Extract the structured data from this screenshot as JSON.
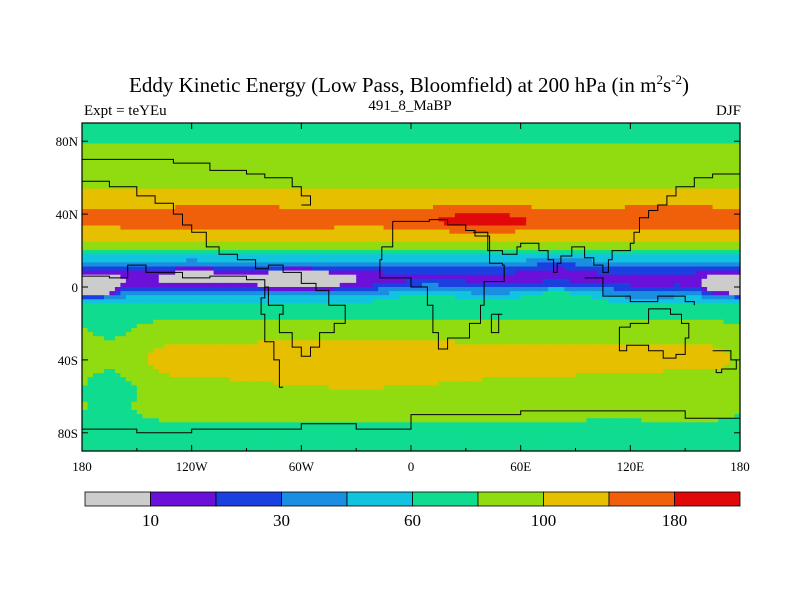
{
  "chart_data": {
    "type": "heatmap",
    "title": "Eddy Kinetic Energy (Low Pass, Bloomfield) at 200 hPa (in m",
    "title_units": {
      "sup1": "2",
      "mid": "s",
      "sup2": "-2",
      "close": ")"
    },
    "left_label": "Expt = teYEu",
    "center_label": "491_8_MaBP",
    "right_label": "DJF",
    "x_axis": {
      "range": [
        -180,
        180
      ],
      "ticks": [
        -180,
        -120,
        -60,
        0,
        60,
        120,
        180
      ],
      "tick_labels": [
        "180",
        "120W",
        "60W",
        "0",
        "60E",
        "120E",
        "180"
      ]
    },
    "y_axis": {
      "range": [
        -90,
        90
      ],
      "ticks": [
        80,
        40,
        0,
        -40,
        -80
      ],
      "tick_labels": [
        "80N",
        "40N",
        "0",
        "40S",
        "80S"
      ]
    },
    "levels": [
      0,
      10,
      20,
      30,
      45,
      60,
      80,
      100,
      140,
      180,
      220
    ],
    "colors": [
      "#cccccc",
      "#6a10d8",
      "#1a40e0",
      "#1a8ee0",
      "#10c4e0",
      "#10dc90",
      "#90dc10",
      "#e6c000",
      "#f0600a",
      "#e00808"
    ],
    "colorbar_labels": [
      {
        "boundary": 1,
        "text": "10"
      },
      {
        "boundary": 3,
        "text": "30"
      },
      {
        "boundary": 5,
        "text": "60"
      },
      {
        "boundary": 7,
        "text": "100"
      },
      {
        "boundary": 9,
        "text": "180"
      }
    ],
    "field": {
      "base": 78,
      "bands": [
        {
          "lat": 88,
          "amp": -18,
          "hw": 10
        },
        {
          "lat": 70,
          "amp": 15,
          "hw": 12
        },
        {
          "lat": 37,
          "amp": 65,
          "hw": 12
        },
        {
          "lat": 48,
          "amp": 14,
          "hw": 14
        },
        {
          "lat": 5,
          "amp": -60,
          "hw": 12
        },
        {
          "lat": -40,
          "amp": 30,
          "hw": 16
        },
        {
          "lat": -65,
          "amp": 8,
          "hw": 10
        },
        {
          "lat": -85,
          "amp": -12,
          "hw": 8
        }
      ],
      "blobs": [
        {
          "lon": 40,
          "lat": 36,
          "amp": 60,
          "slon": 30,
          "slat": 5
        },
        {
          "lon": -100,
          "lat": 36,
          "amp": 25,
          "slon": 35,
          "slat": 6
        },
        {
          "lon": 140,
          "lat": 36,
          "amp": 20,
          "slon": 25,
          "slat": 7
        },
        {
          "lon": -60,
          "lat": 3,
          "amp": -25,
          "slon": 30,
          "slat": 7
        },
        {
          "lon": -170,
          "lat": 0,
          "amp": -40,
          "slon": 10,
          "slat": 6
        },
        {
          "lon": 175,
          "lat": 0,
          "amp": -40,
          "slon": 15,
          "slat": 6
        },
        {
          "lon": -120,
          "lat": 5,
          "amp": -15,
          "slon": 25,
          "slat": 8
        },
        {
          "lon": 80,
          "lat": -5,
          "amp": 25,
          "slon": 20,
          "slat": 5
        },
        {
          "lon": 10,
          "lat": -5,
          "amp": 18,
          "slon": 18,
          "slat": 6
        },
        {
          "lon": 130,
          "lat": -5,
          "amp": -10,
          "slon": 20,
          "slat": 8
        },
        {
          "lon": -30,
          "lat": -45,
          "amp": 15,
          "slon": 50,
          "slat": 12
        },
        {
          "lon": 150,
          "lat": -52,
          "amp": -12,
          "slon": 18,
          "slat": 7
        },
        {
          "lon": 110,
          "lat": -60,
          "amp": -10,
          "slon": 25,
          "slat": 10
        },
        {
          "lon": -165,
          "lat": -45,
          "amp": -25,
          "slon": 20,
          "slat": 25
        },
        {
          "lon": 80,
          "lat": 12,
          "amp": -10,
          "slon": 20,
          "slat": 5
        }
      ]
    },
    "coastline_paths": [
      [
        [
          -180,
          6
        ],
        [
          -165,
          5
        ],
        [
          -155,
          12
        ],
        [
          -150,
          12
        ],
        [
          -145,
          8
        ],
        [
          -125,
          5
        ],
        [
          -110,
          6
        ],
        [
          -90,
          4
        ],
        [
          -80,
          0
        ],
        [
          -78,
          -10
        ],
        [
          -70,
          -15
        ],
        [
          -72,
          -25
        ],
        [
          -65,
          -33
        ],
        [
          -60,
          -38
        ],
        [
          -55,
          -33
        ],
        [
          -50,
          -25
        ],
        [
          -42,
          -20
        ],
        [
          -36,
          -10
        ],
        [
          -45,
          -2
        ],
        [
          -52,
          2
        ],
        [
          -60,
          8
        ],
        [
          -70,
          12
        ],
        [
          -78,
          10
        ],
        [
          -85,
          15
        ],
        [
          -95,
          18
        ],
        [
          -105,
          22
        ],
        [
          -112,
          30
        ],
        [
          -120,
          34
        ],
        [
          -125,
          40
        ],
        [
          -130,
          46
        ],
        [
          -140,
          50
        ],
        [
          -150,
          55
        ],
        [
          -165,
          58
        ],
        [
          -180,
          62
        ]
      ],
      [
        [
          -70,
          -55
        ],
        [
          -72,
          -40
        ],
        [
          -75,
          -30
        ],
        [
          -80,
          -15
        ],
        [
          -82,
          -6
        ],
        [
          -80,
          0
        ]
      ],
      [
        [
          -10,
          36
        ],
        [
          0,
          36
        ],
        [
          10,
          37
        ],
        [
          20,
          34
        ],
        [
          30,
          31
        ],
        [
          35,
          28
        ],
        [
          43,
          13
        ],
        [
          50,
          12
        ],
        [
          51,
          3
        ],
        [
          40,
          -10
        ],
        [
          38,
          -20
        ],
        [
          32,
          -28
        ],
        [
          20,
          -34
        ],
        [
          15,
          -25
        ],
        [
          12,
          -10
        ],
        [
          9,
          0
        ],
        [
          0,
          5
        ],
        [
          -10,
          5
        ],
        [
          -17,
          15
        ],
        [
          -16,
          22
        ],
        [
          -10,
          30
        ],
        [
          -10,
          36
        ]
      ],
      [
        [
          34,
          30
        ],
        [
          42,
          20
        ],
        [
          50,
          18
        ],
        [
          58,
          22
        ],
        [
          60,
          24
        ],
        [
          70,
          20
        ],
        [
          75,
          15
        ],
        [
          78,
          8
        ],
        [
          80,
          13
        ],
        [
          82,
          17
        ],
        [
          88,
          22
        ],
        [
          95,
          16
        ],
        [
          100,
          12
        ],
        [
          105,
          8
        ],
        [
          108,
          15
        ],
        [
          110,
          20
        ],
        [
          120,
          24
        ],
        [
          122,
          30
        ],
        [
          125,
          38
        ],
        [
          130,
          42
        ],
        [
          135,
          45
        ],
        [
          140,
          50
        ],
        [
          145,
          55
        ],
        [
          155,
          60
        ],
        [
          165,
          62
        ],
        [
          180,
          65
        ]
      ],
      [
        [
          114,
          -22
        ],
        [
          120,
          -20
        ],
        [
          130,
          -12
        ],
        [
          138,
          -12
        ],
        [
          142,
          -15
        ],
        [
          148,
          -20
        ],
        [
          152,
          -28
        ],
        [
          150,
          -37
        ],
        [
          145,
          -39
        ],
        [
          138,
          -35
        ],
        [
          130,
          -32
        ],
        [
          118,
          -35
        ],
        [
          114,
          -32
        ],
        [
          114,
          -22
        ]
      ],
      [
        [
          -180,
          -78
        ],
        [
          -150,
          -80
        ],
        [
          -120,
          -78
        ],
        [
          -90,
          -78
        ],
        [
          -60,
          -75
        ],
        [
          -30,
          -78
        ],
        [
          0,
          -70
        ],
        [
          30,
          -70
        ],
        [
          60,
          -68
        ],
        [
          90,
          -68
        ],
        [
          120,
          -68
        ],
        [
          150,
          -72
        ],
        [
          180,
          -78
        ]
      ],
      [
        [
          95,
          5
        ],
        [
          105,
          -5
        ],
        [
          120,
          -8
        ],
        [
          135,
          -5
        ],
        [
          150,
          -8
        ],
        [
          155,
          -10
        ]
      ],
      [
        [
          165,
          -35
        ],
        [
          175,
          -40
        ],
        [
          178,
          -45
        ],
        [
          170,
          -47
        ],
        [
          167,
          -45
        ]
      ],
      [
        [
          44,
          -15
        ],
        [
          50,
          -15
        ],
        [
          48,
          -25
        ],
        [
          44,
          -24
        ],
        [
          44,
          -15
        ]
      ],
      [
        [
          -60,
          45
        ],
        [
          -55,
          50
        ],
        [
          -60,
          55
        ],
        [
          -65,
          60
        ],
        [
          -80,
          62
        ],
        [
          -90,
          64
        ],
        [
          -110,
          68
        ],
        [
          -130,
          70
        ],
        [
          -160,
          70
        ],
        [
          -180,
          68
        ]
      ]
    ]
  }
}
